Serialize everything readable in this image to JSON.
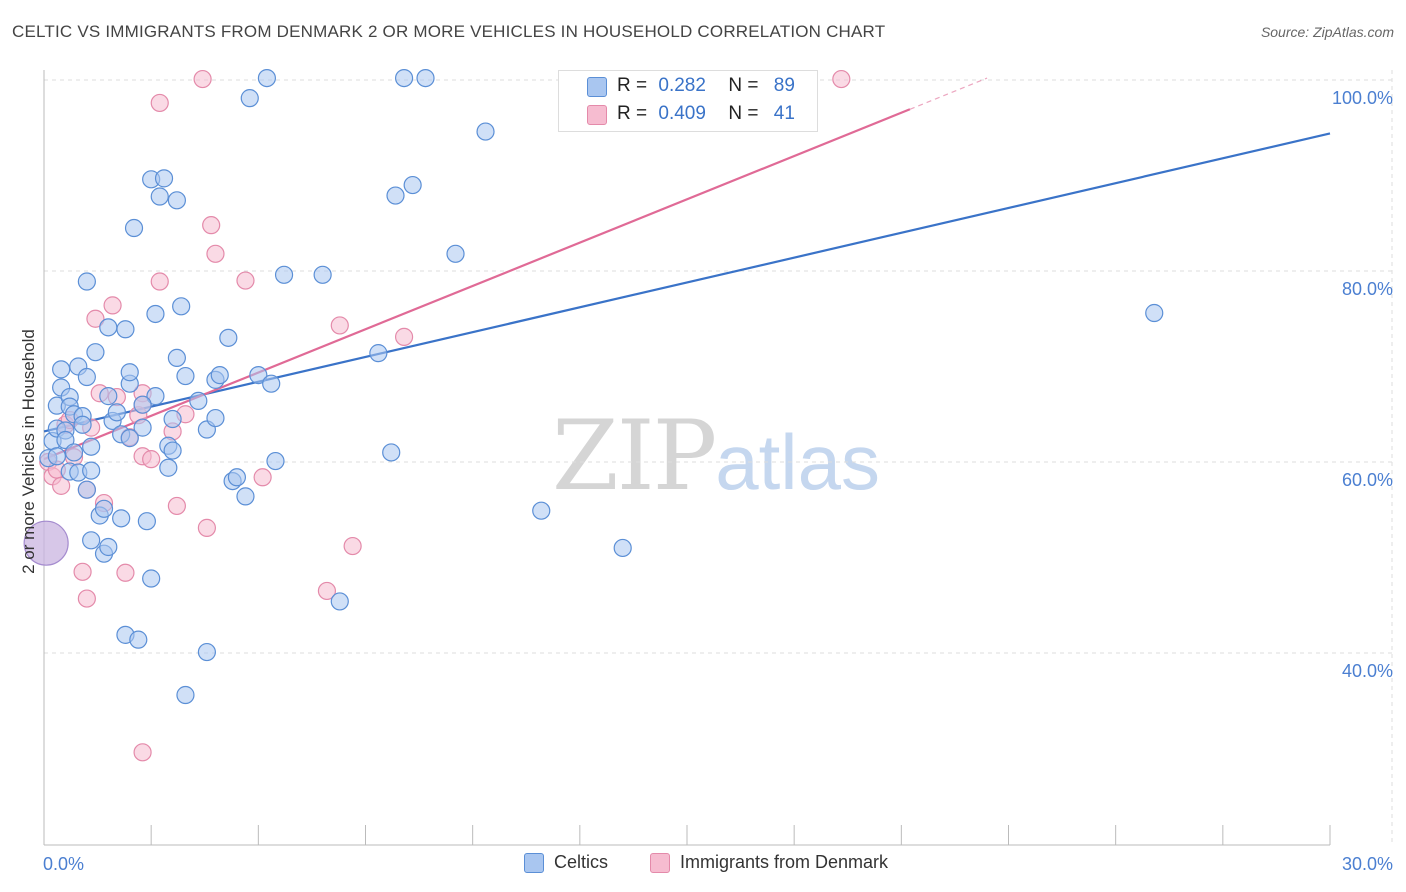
{
  "title": "CELTIC VS IMMIGRANTS FROM DENMARK 2 OR MORE VEHICLES IN HOUSEHOLD CORRELATION CHART",
  "source": "Source: ZipAtlas.com",
  "watermark": {
    "zip": "ZIP",
    "atlas": "atlas"
  },
  "legend": {
    "rows": [
      {
        "r_label": "R =",
        "r_value": "0.282",
        "n_label": "N =",
        "n_value": "89"
      },
      {
        "r_label": "R =",
        "r_value": "0.409",
        "n_label": "N =",
        "n_value": "41"
      }
    ]
  },
  "bottom_legend": [
    "Celtics",
    "Immigrants from Denmark"
  ],
  "colors": {
    "blue_fill": "#a9c6f0",
    "blue_stroke": "#5b8fd6",
    "blue_line": "#3a73c8",
    "pink_fill": "#f6bcd0",
    "pink_stroke": "#e48aaa",
    "pink_line": "#e06a96",
    "grid": "#dddddd",
    "tick_text": "#4b7fd1"
  },
  "chart_data": {
    "type": "scatter",
    "title": "CELTIC VS IMMIGRANTS FROM DENMARK 2 OR MORE VEHICLES IN HOUSEHOLD CORRELATION CHART",
    "xlabel": "",
    "ylabel": "2 or more Vehicles in Household",
    "xlim": [
      0,
      30
    ],
    "ylim": [
      20,
      102
    ],
    "x_tick_labels": [
      "0.0%",
      "30.0%"
    ],
    "y_ticks": [
      40,
      60,
      80,
      100
    ],
    "y_tick_labels": [
      "40.0%",
      "60.0%",
      "80.0%",
      "100.0%"
    ],
    "grid": true,
    "series": [
      {
        "name": "Celtics",
        "color": "blue",
        "trendline": {
          "x": [
            0,
            30
          ],
          "y": [
            63.2,
            94.4
          ],
          "dashed_from": null
        },
        "points": [
          [
            0.1,
            60.4
          ],
          [
            0.2,
            62.2
          ],
          [
            0.3,
            60.6
          ],
          [
            0.3,
            63.5
          ],
          [
            0.3,
            65.9
          ],
          [
            0.4,
            67.8
          ],
          [
            0.4,
            69.7
          ],
          [
            0.5,
            63.3
          ],
          [
            0.5,
            62.3
          ],
          [
            0.6,
            59.0
          ],
          [
            0.6,
            66.8
          ],
          [
            0.6,
            65.8
          ],
          [
            0.7,
            65.0
          ],
          [
            0.7,
            61.0
          ],
          [
            0.8,
            58.9
          ],
          [
            0.8,
            70.0
          ],
          [
            0.9,
            64.8
          ],
          [
            1.0,
            68.9
          ],
          [
            1.0,
            57.1
          ],
          [
            1.0,
            78.9
          ],
          [
            1.1,
            59.1
          ],
          [
            1.1,
            51.8
          ],
          [
            1.1,
            61.6
          ],
          [
            1.2,
            71.5
          ],
          [
            1.3,
            54.4
          ],
          [
            1.4,
            55.1
          ],
          [
            1.4,
            50.4
          ],
          [
            1.5,
            51.1
          ],
          [
            1.5,
            74.1
          ],
          [
            1.6,
            64.3
          ],
          [
            1.7,
            65.2
          ],
          [
            1.8,
            54.1
          ],
          [
            1.8,
            62.9
          ],
          [
            1.9,
            41.9
          ],
          [
            1.9,
            73.9
          ],
          [
            2.0,
            68.2
          ],
          [
            2.0,
            69.4
          ],
          [
            2.1,
            84.5
          ],
          [
            2.2,
            41.4
          ],
          [
            2.3,
            63.6
          ],
          [
            2.4,
            53.8
          ],
          [
            2.5,
            89.6
          ],
          [
            2.5,
            47.8
          ],
          [
            2.6,
            66.9
          ],
          [
            2.6,
            75.5
          ],
          [
            2.7,
            87.8
          ],
          [
            2.8,
            89.7
          ],
          [
            2.9,
            59.4
          ],
          [
            2.9,
            61.7
          ],
          [
            3.0,
            64.5
          ],
          [
            3.1,
            87.4
          ],
          [
            3.1,
            70.9
          ],
          [
            3.2,
            76.3
          ],
          [
            3.3,
            69.0
          ],
          [
            3.3,
            35.6
          ],
          [
            3.6,
            66.4
          ],
          [
            3.8,
            40.1
          ],
          [
            3.8,
            63.4
          ],
          [
            4.0,
            68.6
          ],
          [
            4.0,
            64.6
          ],
          [
            4.1,
            69.1
          ],
          [
            4.3,
            73.0
          ],
          [
            4.4,
            58.0
          ],
          [
            4.5,
            58.4
          ],
          [
            4.7,
            56.4
          ],
          [
            4.8,
            98.1
          ],
          [
            5.0,
            69.1
          ],
          [
            5.2,
            100.2
          ],
          [
            5.3,
            68.2
          ],
          [
            5.4,
            60.1
          ],
          [
            5.6,
            79.6
          ],
          [
            6.5,
            79.6
          ],
          [
            6.9,
            45.4
          ],
          [
            7.8,
            71.4
          ],
          [
            8.1,
            61.0
          ],
          [
            8.2,
            87.9
          ],
          [
            8.4,
            100.2
          ],
          [
            8.6,
            89.0
          ],
          [
            8.9,
            100.2
          ],
          [
            9.6,
            81.8
          ],
          [
            10.3,
            94.6
          ],
          [
            11.6,
            54.9
          ],
          [
            13.5,
            51.0
          ],
          [
            25.9,
            75.6
          ],
          [
            2.3,
            66.0
          ],
          [
            3.0,
            61.2
          ],
          [
            1.5,
            66.9
          ],
          [
            0.9,
            63.9
          ],
          [
            2.0,
            62.5
          ]
        ]
      },
      {
        "name": "Immigrants from Denmark",
        "color": "pink",
        "trendline": {
          "x": [
            0,
            22
          ],
          "y": [
            60.3,
            100.2
          ],
          "dashed_from": 20.2
        },
        "points": [
          [
            0.05,
            51.5
          ],
          [
            0.1,
            60.0
          ],
          [
            0.2,
            58.5
          ],
          [
            0.3,
            59.2
          ],
          [
            0.4,
            57.5
          ],
          [
            0.5,
            63.9
          ],
          [
            0.6,
            64.4
          ],
          [
            0.7,
            60.5
          ],
          [
            0.9,
            48.5
          ],
          [
            1.0,
            45.7
          ],
          [
            1.0,
            57.1
          ],
          [
            1.1,
            63.6
          ],
          [
            1.2,
            75.0
          ],
          [
            1.3,
            67.2
          ],
          [
            1.4,
            55.7
          ],
          [
            1.6,
            76.4
          ],
          [
            1.7,
            66.8
          ],
          [
            1.9,
            48.4
          ],
          [
            2.0,
            62.6
          ],
          [
            2.2,
            64.9
          ],
          [
            2.3,
            60.6
          ],
          [
            2.3,
            67.2
          ],
          [
            2.3,
            66.0
          ],
          [
            2.3,
            29.6
          ],
          [
            2.5,
            60.3
          ],
          [
            2.7,
            78.9
          ],
          [
            2.7,
            97.6
          ],
          [
            3.0,
            63.2
          ],
          [
            3.1,
            55.4
          ],
          [
            3.3,
            65.0
          ],
          [
            3.7,
            100.1
          ],
          [
            3.8,
            53.1
          ],
          [
            3.9,
            84.8
          ],
          [
            4.0,
            81.8
          ],
          [
            4.7,
            79.0
          ],
          [
            5.1,
            58.4
          ],
          [
            6.6,
            46.5
          ],
          [
            6.9,
            74.3
          ],
          [
            7.2,
            51.2
          ],
          [
            8.4,
            73.1
          ],
          [
            18.6,
            100.1
          ]
        ]
      }
    ]
  }
}
